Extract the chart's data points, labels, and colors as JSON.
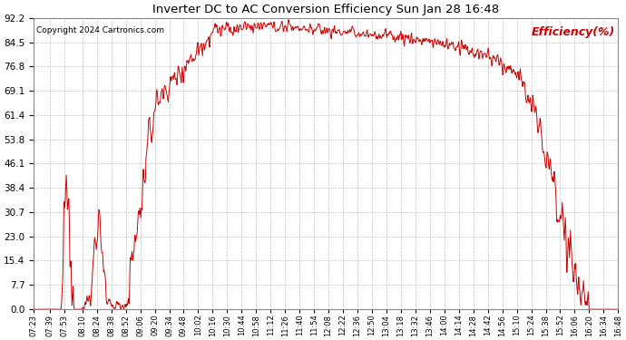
{
  "title": "Inverter DC to AC Conversion Efficiency Sun Jan 28 16:48",
  "copyright": "Copyright 2024 Cartronics.com",
  "legend_label": "Efficiency(%)",
  "line_color": "#cc0000",
  "background_color": "#ffffff",
  "grid_color": "#bbbbbb",
  "title_color": "#000000",
  "legend_color": "#cc0000",
  "copyright_color": "#000000",
  "y_ticks": [
    0.0,
    7.7,
    15.4,
    23.0,
    30.7,
    38.4,
    46.1,
    53.8,
    61.4,
    69.1,
    76.8,
    84.5,
    92.2
  ],
  "ylim": [
    -1.0,
    92.2
  ],
  "x_tick_labels": [
    "07:23",
    "07:39",
    "07:53",
    "08:10",
    "08:24",
    "08:38",
    "08:52",
    "09:06",
    "09:20",
    "09:34",
    "09:48",
    "10:02",
    "10:16",
    "10:30",
    "10:44",
    "10:58",
    "11:12",
    "11:26",
    "11:40",
    "11:54",
    "12:08",
    "12:22",
    "12:36",
    "12:50",
    "13:04",
    "13:18",
    "13:32",
    "13:46",
    "14:00",
    "14:14",
    "14:28",
    "14:42",
    "14:56",
    "15:10",
    "15:24",
    "15:38",
    "15:52",
    "16:06",
    "16:20",
    "16:34",
    "16:48"
  ],
  "figsize": [
    6.9,
    3.75
  ],
  "dpi": 100
}
